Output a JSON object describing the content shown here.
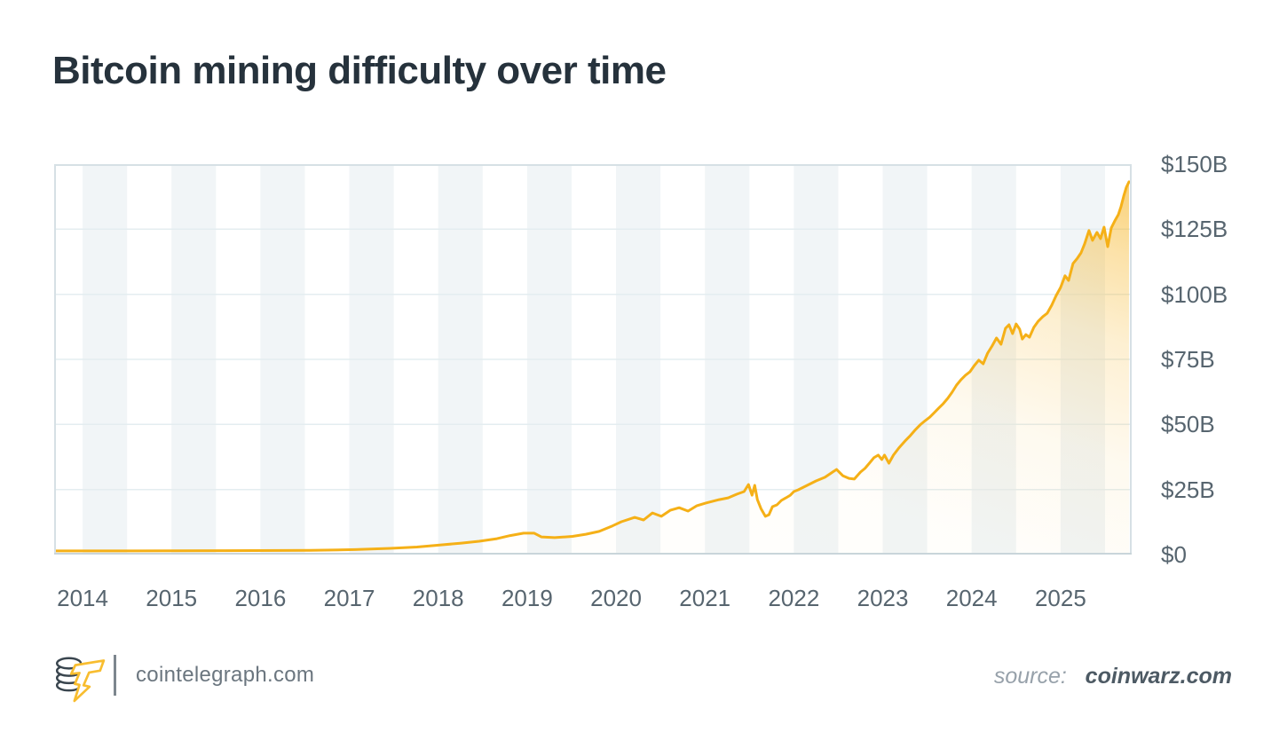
{
  "header": {
    "title": "Bitcoin mining difficulty over time"
  },
  "footer": {
    "logo_icon": "cointelegraph-logo-icon",
    "brand": "cointelegraph.com",
    "source_prefix": "source:",
    "source_name": "coinwarz.com"
  },
  "colors": {
    "title": "#26323c",
    "tick_label": "#57656f",
    "stripe": "#f1f5f7",
    "gridline": "#e4edf0",
    "frame": "#d6e0e5",
    "frame_bottom": "#c9d5da",
    "line": "#f5b017",
    "area_base": "246,178,28",
    "brand_text": "#6b767f",
    "source_name_text": "#4d5a64"
  },
  "chart_data": {
    "type": "area",
    "title": "Bitcoin mining difficulty over time",
    "xlabel": "",
    "ylabel": "",
    "unit": "USD billions",
    "x_ticks": [
      "2014",
      "2015",
      "2016",
      "2017",
      "2018",
      "2019",
      "2020",
      "2021",
      "2022",
      "2023",
      "2024",
      "2025"
    ],
    "y_ticks": [
      "$150B",
      "$125B",
      "$100B",
      "$75B",
      "$50B",
      "$25B",
      "$0"
    ],
    "y_tick_values": [
      150,
      125,
      100,
      75,
      50,
      25,
      0
    ],
    "xlim": [
      2013.68,
      2025.8
    ],
    "ylim": [
      0,
      150
    ],
    "y_axis_side": "right",
    "grid": "horizontal",
    "stripes": "first half of each calendar year shaded",
    "legend": "none",
    "line_color": "#f5b017",
    "fill_gradient_stops": [
      [
        0,
        0
      ],
      [
        0.45,
        0.02
      ],
      [
        0.62,
        0.07
      ],
      [
        0.78,
        0.2
      ],
      [
        0.9,
        0.38
      ],
      [
        1,
        0.6
      ]
    ],
    "series": [
      {
        "name": "mining-difficulty",
        "x": [
          2013.68,
          2014.57,
          2015.57,
          2016.56,
          2017.06,
          2017.46,
          2017.76,
          2018.06,
          2018.26,
          2018.46,
          2018.66,
          2018.81,
          2018.96,
          2019.08,
          2019.16,
          2019.31,
          2019.51,
          2019.66,
          2019.81,
          2019.96,
          2020.06,
          2020.21,
          2020.31,
          2020.41,
          2020.51,
          2020.61,
          2020.71,
          2020.81,
          2020.91,
          2021.01,
          2021.16,
          2021.26,
          2021.36,
          2021.44,
          2021.49,
          2021.53,
          2021.56,
          2021.59,
          2021.63,
          2021.68,
          2021.72,
          2021.76,
          2021.81,
          2021.86,
          2021.91,
          2021.96,
          2022.0,
          2022.05,
          2022.15,
          2022.25,
          2022.35,
          2022.45,
          2022.48,
          2022.55,
          2022.62,
          2022.68,
          2022.75,
          2022.8,
          2022.85,
          2022.9,
          2022.95,
          2022.99,
          2023.02,
          2023.07,
          2023.12,
          2023.18,
          2023.25,
          2023.31,
          2023.36,
          2023.42,
          2023.48,
          2023.53,
          2023.58,
          2023.63,
          2023.68,
          2023.73,
          2023.78,
          2023.83,
          2023.88,
          2023.93,
          2023.98,
          2024.03,
          2024.08,
          2024.13,
          2024.18,
          2024.23,
          2024.28,
          2024.33,
          2024.38,
          2024.42,
          2024.46,
          2024.5,
          2024.54,
          2024.57,
          2024.61,
          2024.65,
          2024.7,
          2024.75,
          2024.8,
          2024.85,
          2024.9,
          2024.95,
          2025.0,
          2025.05,
          2025.09,
          2025.14,
          2025.19,
          2025.23,
          2025.27,
          2025.32,
          2025.36,
          2025.41,
          2025.45,
          2025.49,
          2025.53,
          2025.57,
          2025.61,
          2025.65,
          2025.68,
          2025.71,
          2025.74,
          2025.77
        ],
        "values": [
          1.4,
          1.4,
          1.5,
          1.6,
          1.9,
          2.4,
          2.9,
          3.8,
          4.4,
          5.1,
          6.1,
          7.3,
          8.2,
          8.2,
          6.8,
          6.5,
          7.0,
          7.8,
          8.9,
          11.0,
          12.6,
          14.3,
          13.3,
          16.0,
          14.7,
          17.0,
          18.0,
          16.7,
          18.8,
          19.8,
          21.1,
          21.8,
          23.2,
          24.2,
          26.9,
          22.8,
          26.6,
          21.1,
          17.7,
          14.7,
          15.3,
          18.4,
          19.1,
          20.8,
          21.8,
          22.8,
          24.2,
          24.9,
          26.6,
          28.3,
          29.7,
          32.0,
          32.7,
          30.3,
          29.3,
          29.0,
          31.7,
          33.1,
          35.1,
          37.2,
          38.2,
          36.5,
          38.2,
          35.1,
          38.2,
          40.9,
          43.6,
          45.7,
          47.7,
          49.8,
          51.5,
          52.8,
          54.5,
          56.3,
          58.0,
          60.0,
          62.4,
          65.1,
          67.2,
          68.9,
          70.2,
          72.6,
          74.7,
          73.3,
          77.4,
          80.1,
          83.2,
          80.8,
          86.9,
          88.3,
          84.9,
          88.6,
          86.6,
          82.8,
          84.5,
          83.5,
          87.3,
          89.7,
          91.4,
          92.7,
          95.8,
          99.5,
          102.6,
          107.1,
          105.3,
          111.8,
          113.9,
          115.9,
          119.3,
          124.5,
          120.7,
          123.8,
          121.4,
          125.8,
          118.3,
          125.5,
          128.2,
          130.6,
          133.7,
          137.7,
          141.1,
          143.2
        ]
      }
    ]
  }
}
